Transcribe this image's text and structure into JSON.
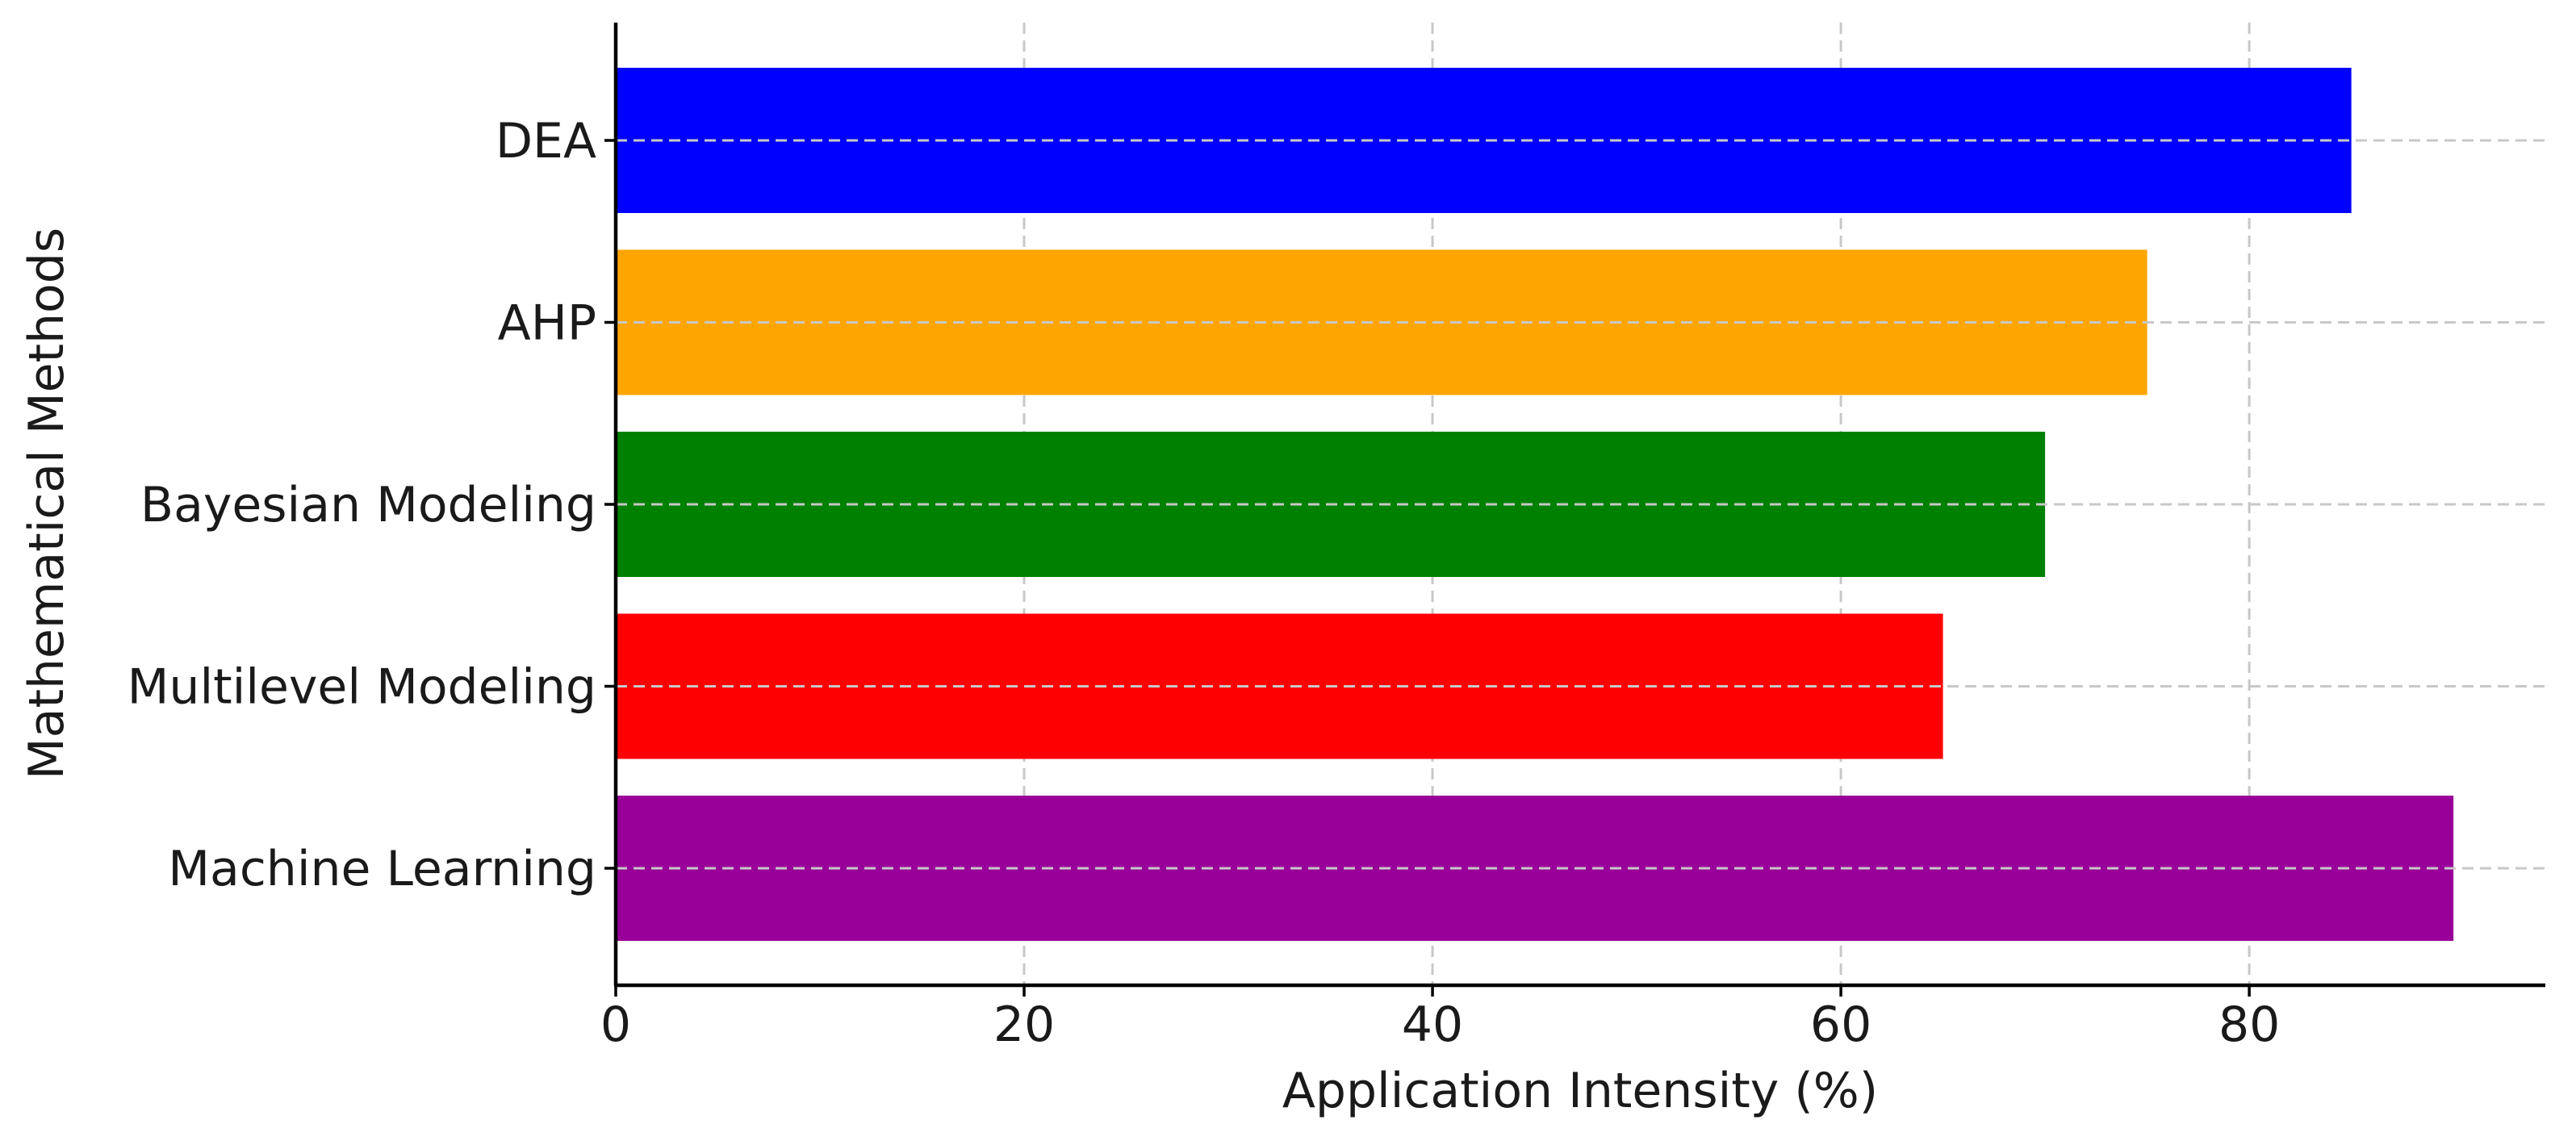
{
  "chart_data": {
    "type": "bar",
    "orientation": "horizontal",
    "categories": [
      "DEA",
      "AHP",
      "Bayesian Modeling",
      "Multilevel Modeling",
      "Machine Learning"
    ],
    "values": [
      85,
      75,
      70,
      65,
      90
    ],
    "colors": [
      "#0000ff",
      "#ffa500",
      "#008000",
      "#ff0000",
      "#990099"
    ],
    "title": "",
    "xlabel": "Application Intensity (%)",
    "ylabel": "Mathematical Methods",
    "xlim": [
      0,
      94.5
    ],
    "xticks": [
      0,
      20,
      40,
      60,
      80
    ],
    "grid": true
  }
}
